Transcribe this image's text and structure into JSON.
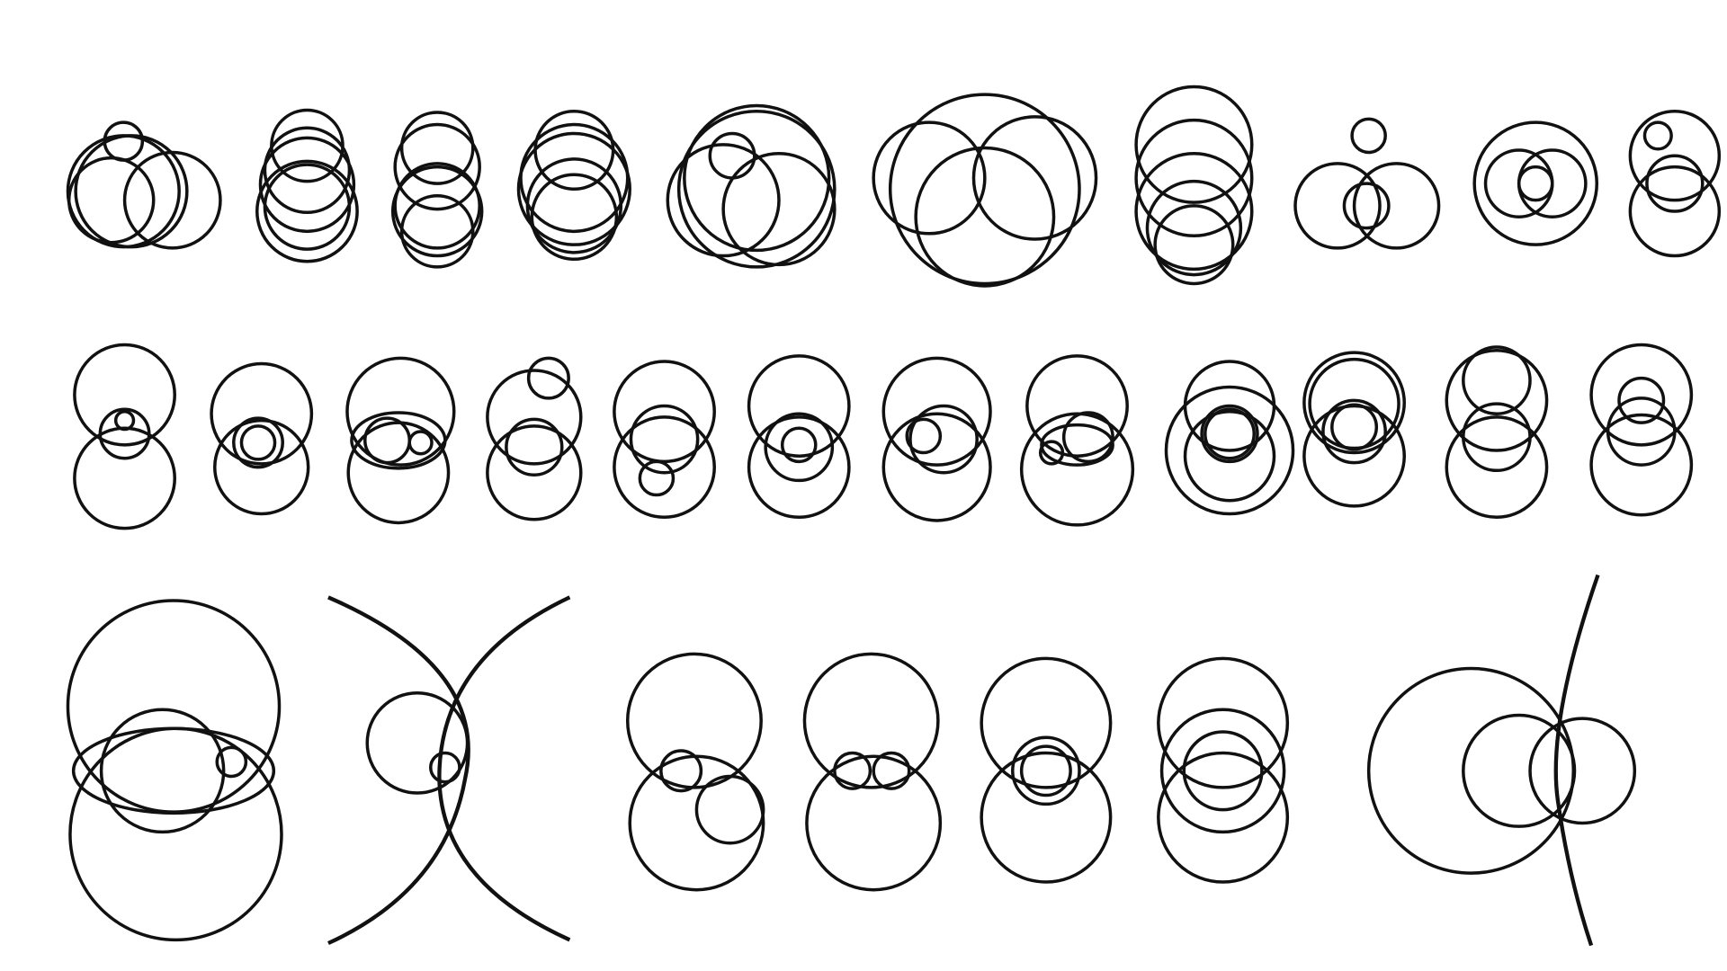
{
  "diagram": {
    "description_visible_text": "",
    "stroke_color": "#111111",
    "background_color": "#ffffff"
  }
}
